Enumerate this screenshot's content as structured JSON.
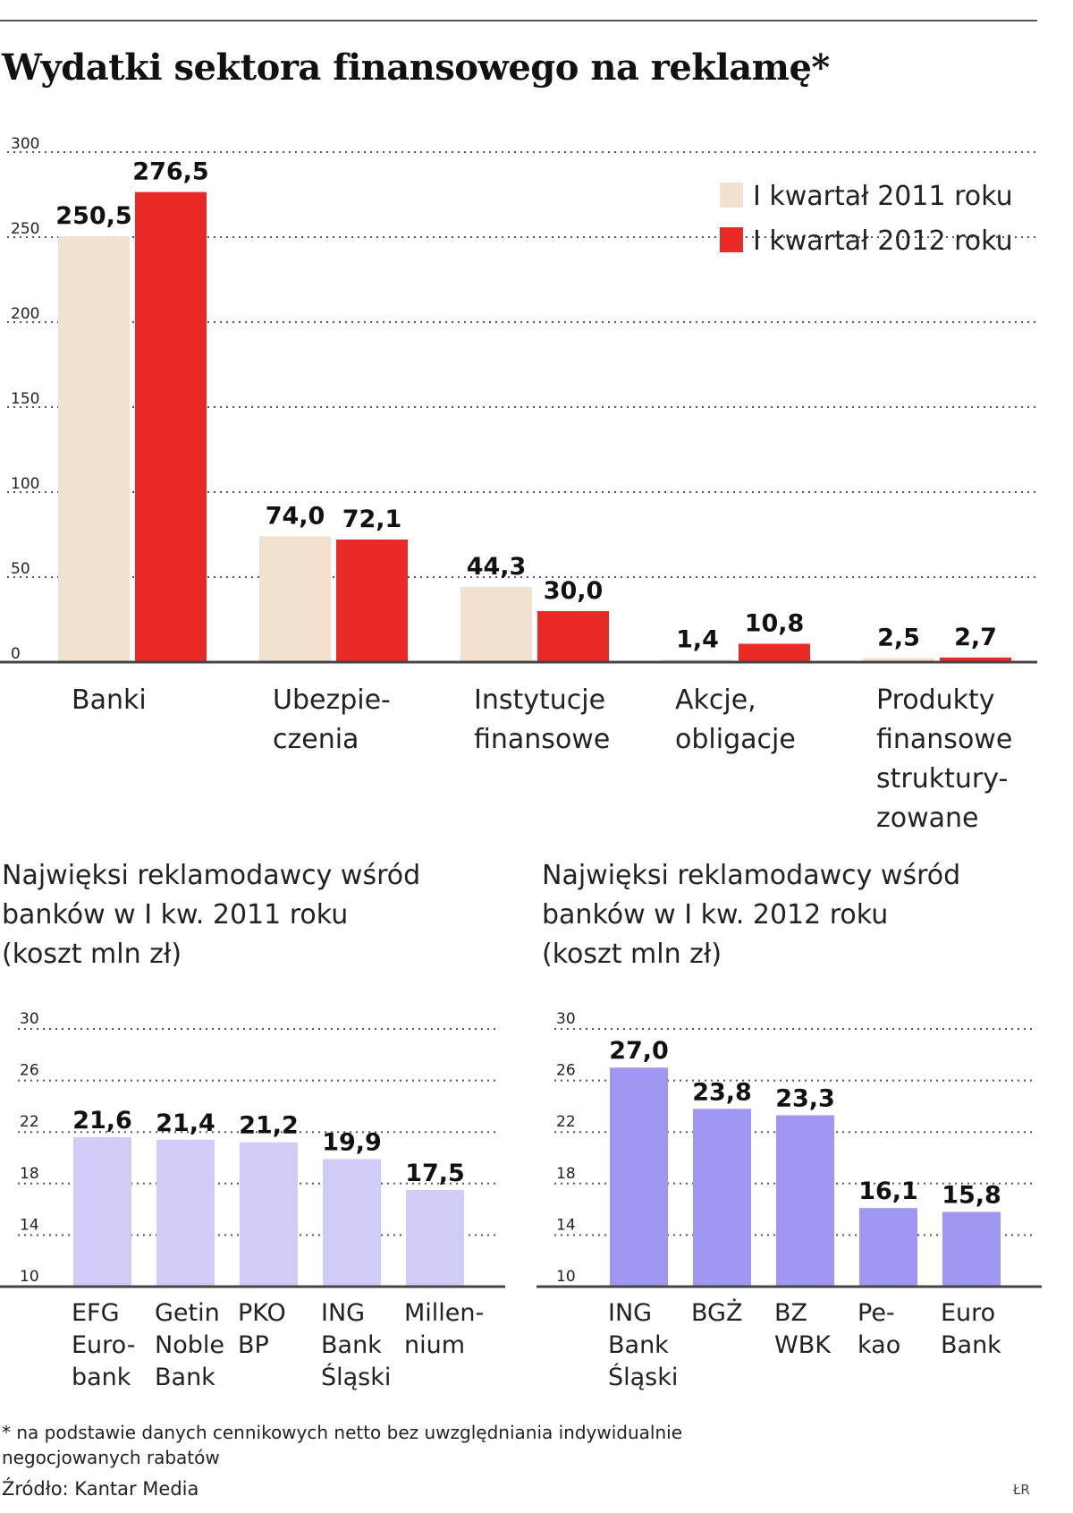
{
  "title": "Wydatki sektora finansowego na reklamę*",
  "colors": {
    "series2011": "#f1e1cf",
    "series2012": "#ea2a26",
    "bank2011": "#cfccf7",
    "bank2012": "#9f97f1"
  },
  "chart_data": [
    {
      "type": "bar",
      "title": "Wydatki sektora finansowego na reklamę*",
      "categories": [
        [
          "Banki"
        ],
        [
          "Ubezpie-",
          "czenia"
        ],
        [
          "Instytucje",
          "finansowe"
        ],
        [
          "Akcje,",
          "obligacje"
        ],
        [
          "Produkty",
          "finansowe",
          "struktury-",
          "zowane"
        ]
      ],
      "series": [
        {
          "name": "I kwartał 2011 roku",
          "values": [
            250.5,
            74.0,
            44.3,
            1.4,
            2.5
          ],
          "labels": [
            "250,5",
            "74,0",
            "44,3",
            "1,4",
            "2,5"
          ]
        },
        {
          "name": "I kwartał 2012 roku",
          "values": [
            276.5,
            72.1,
            30.0,
            10.8,
            2.7
          ],
          "labels": [
            "276,5",
            "72,1",
            "30,0",
            "10,8",
            "2,7"
          ]
        }
      ],
      "yticks": [
        "0",
        "50",
        "100",
        "150",
        "200",
        "250",
        "300"
      ],
      "ylim": [
        0,
        300
      ],
      "grid": true,
      "legend": "top-right"
    },
    {
      "type": "bar",
      "title": [
        "Najwięksi reklamodawcy wśród",
        "banków w I kw. 2011 roku",
        "(koszt mln zł)"
      ],
      "categories": [
        [
          "EFG",
          "Euro-",
          "bank"
        ],
        [
          "Getin",
          "Noble",
          "Bank"
        ],
        [
          "PKO",
          "BP"
        ],
        [
          "ING",
          "Bank",
          "Śląski"
        ],
        [
          "Millen-",
          "nium"
        ]
      ],
      "values": [
        21.6,
        21.4,
        21.2,
        19.9,
        17.5
      ],
      "labels": [
        "21,6",
        "21,4",
        "21,2",
        "19,9",
        "17,5"
      ],
      "yticks": [
        "10",
        "14",
        "18",
        "22",
        "26",
        "30"
      ],
      "ylim": [
        10,
        30
      ],
      "grid": true
    },
    {
      "type": "bar",
      "title": [
        "Najwięksi reklamodawcy wśród",
        "banków w I kw. 2012 roku",
        "(koszt mln zł)"
      ],
      "categories": [
        [
          "ING",
          "Bank",
          "Śląski"
        ],
        [
          "BGŻ"
        ],
        [
          "BZ",
          "WBK"
        ],
        [
          "Pe-",
          "kao"
        ],
        [
          "Euro",
          "Bank"
        ]
      ],
      "values": [
        27.0,
        23.8,
        23.3,
        16.1,
        15.8
      ],
      "labels": [
        "27,0",
        "23,8",
        "23,3",
        "16,1",
        "15,8"
      ],
      "yticks": [
        "10",
        "14",
        "18",
        "22",
        "26",
        "30"
      ],
      "ylim": [
        10,
        30
      ],
      "grid": true
    }
  ],
  "footnote": [
    "* na podstawie danych cennikowych netto bez uwzględniania indywidualnie",
    "negocjowanych rabatów"
  ],
  "source": "Źródło: Kantar Media",
  "signature": "ŁR"
}
